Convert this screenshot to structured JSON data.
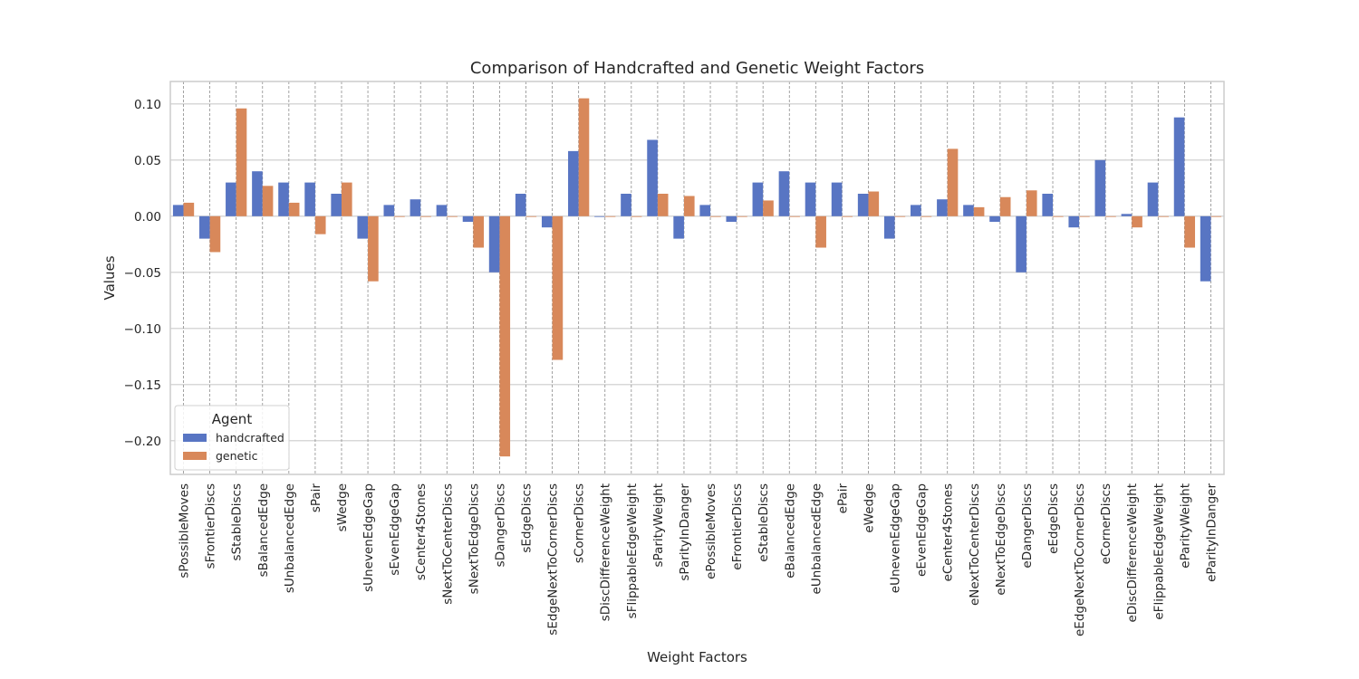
{
  "chart_data": {
    "type": "bar",
    "title": "Comparison of Handcrafted and Genetic Weight Factors",
    "xlabel": "Weight Factors",
    "ylabel": "Values",
    "ylim": [
      -0.23,
      0.12
    ],
    "yticks": [
      0.1,
      0.05,
      0.0,
      -0.05,
      -0.1,
      -0.15,
      -0.2
    ],
    "ytick_labels": [
      "0.10",
      "0.05",
      "0.00",
      "−0.05",
      "−0.10",
      "−0.15",
      "−0.20"
    ],
    "grid": true,
    "legend": {
      "title": "Agent",
      "placement": "lower-left"
    },
    "categories": [
      "sPossibleMoves",
      "sFrontierDiscs",
      "sStableDiscs",
      "sBalancedEdge",
      "sUnbalancedEdge",
      "sPair",
      "sWedge",
      "sUnevenEdgeGap",
      "sEvenEdgeGap",
      "sCenter4Stones",
      "sNextToCenterDiscs",
      "sNextToEdgeDiscs",
      "sDangerDiscs",
      "sEdgeDiscs",
      "sEdgeNextToCornerDiscs",
      "sCornerDiscs",
      "sDiscDifferenceWeight",
      "sFlippableEdgeWeight",
      "sParityWeight",
      "sParityInDanger",
      "ePossibleMoves",
      "eFrontierDiscs",
      "eStableDiscs",
      "eBalancedEdge",
      "eUnbalancedEdge",
      "ePair",
      "eWedge",
      "eUnevenEdgeGap",
      "eEvenEdgeGap",
      "eCenter4Stones",
      "eNextToCenterDiscs",
      "eNextToEdgeDiscs",
      "eDangerDiscs",
      "eEdgeDiscs",
      "eEdgeNextToCornerDiscs",
      "eCornerDiscs",
      "eDiscDifferenceWeight",
      "eFlippableEdgeWeight",
      "eParityWeight",
      "eParityInDanger"
    ],
    "series": [
      {
        "name": "handcrafted",
        "color": "#5875c3",
        "values": [
          0.01,
          -0.02,
          0.03,
          0.04,
          0.03,
          0.03,
          0.02,
          -0.02,
          0.01,
          0.015,
          0.01,
          -0.005,
          -0.05,
          0.02,
          -0.01,
          0.058,
          0.0,
          0.02,
          0.068,
          -0.02,
          0.01,
          -0.005,
          0.03,
          0.04,
          0.03,
          0.03,
          0.02,
          -0.02,
          0.01,
          0.015,
          0.01,
          -0.005,
          -0.05,
          0.02,
          -0.01,
          0.05,
          0.002,
          0.03,
          0.088,
          -0.058
        ]
      },
      {
        "name": "genetic",
        "color": "#d8885a",
        "values": [
          0.012,
          -0.032,
          0.096,
          0.027,
          0.012,
          -0.016,
          0.03,
          -0.058,
          0.0,
          0.0,
          0.0,
          -0.028,
          -0.214,
          0.0,
          -0.128,
          0.105,
          0.0,
          0.0,
          0.02,
          0.018,
          0.0,
          0.0,
          0.014,
          0.0,
          -0.028,
          0.0,
          0.022,
          0.0,
          0.0,
          0.06,
          0.008,
          0.017,
          0.023,
          0.0,
          0.0,
          0.0,
          -0.01,
          0.0,
          -0.028,
          0.0
        ]
      }
    ]
  }
}
